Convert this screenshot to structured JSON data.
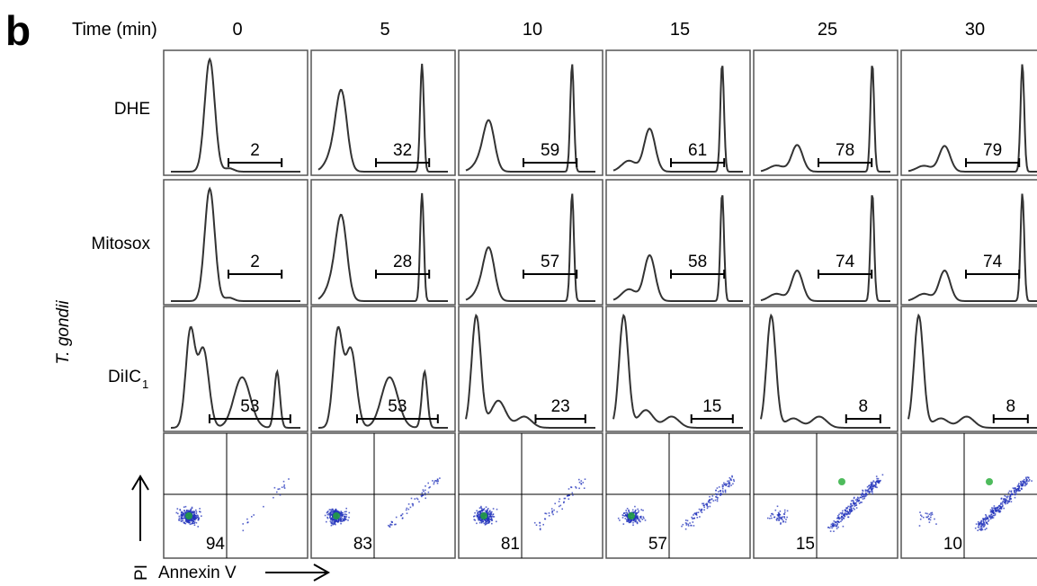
{
  "figure": {
    "panel_letter": "b",
    "time_label": "Time (min)",
    "y_axis_label": "T. gondii",
    "x_axis_label": "Annexin V",
    "y_arrow_label": "PI"
  },
  "time_points": [
    "0",
    "5",
    "10",
    "15",
    "25",
    "30"
  ],
  "rows": [
    {
      "label": "DHE",
      "subscript": ""
    },
    {
      "label": "Mitosox",
      "subscript": ""
    },
    {
      "label": "DiIC",
      "subscript": "1"
    }
  ],
  "histogram_values": [
    [
      "2",
      "32",
      "59",
      "61",
      "78",
      "79"
    ],
    [
      "2",
      "28",
      "57",
      "58",
      "74",
      "74"
    ],
    [
      "53",
      "53",
      "23",
      "15",
      "8",
      "8"
    ]
  ],
  "scatter_values": [
    "94",
    "83",
    "81",
    "57",
    "15",
    "10"
  ],
  "chart_data": {
    "type": "table",
    "title": "",
    "columns_header": "Time (min)",
    "columns": [
      "0",
      "5",
      "10",
      "15",
      "25",
      "30"
    ],
    "series": [
      {
        "name": "DHE",
        "values": [
          2,
          32,
          59,
          61,
          78,
          79
        ]
      },
      {
        "name": "Mitosox",
        "values": [
          2,
          28,
          57,
          58,
          74,
          74
        ]
      },
      {
        "name": "DiIC1",
        "values": [
          53,
          53,
          23,
          15,
          8,
          8
        ]
      },
      {
        "name": "",
        "values": [
          94,
          83,
          81,
          57,
          15,
          10
        ]
      }
    ],
    "xlabel": "Annexin V",
    "ylabel": "PI"
  },
  "colors": {
    "line": "#333333",
    "frame": "#555555",
    "dots": "#2233bb",
    "dense": "#22aa33"
  }
}
